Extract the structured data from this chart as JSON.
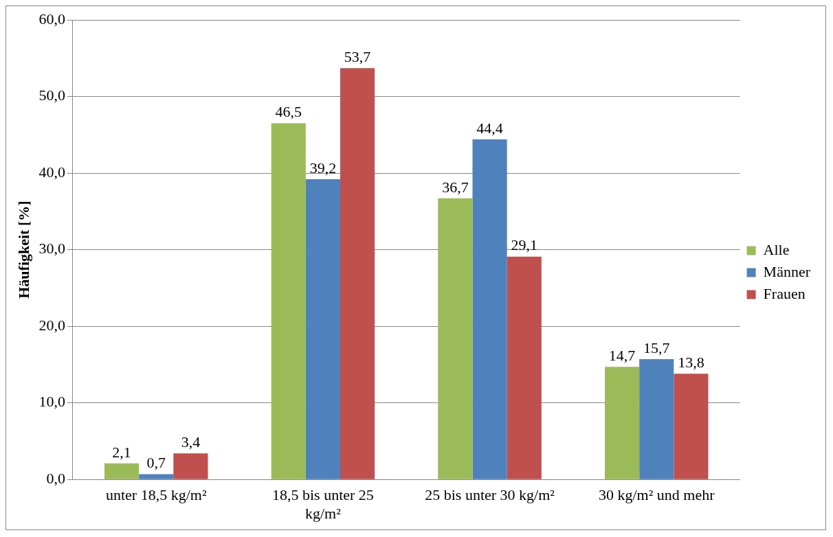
{
  "chart_data": {
    "type": "bar",
    "ylabel": "Häufigkeit [%]",
    "categories": [
      "unter 18,5 kg/m²",
      "18,5 bis unter 25 kg/m²",
      "25 bis unter 30 kg/m²",
      "30 kg/m² und mehr"
    ],
    "series": [
      {
        "name": "Alle",
        "color": "#9bbb59",
        "values": [
          2.1,
          46.5,
          36.7,
          14.7
        ],
        "value_labels": [
          "2,1",
          "46,5",
          "36,7",
          "14,7"
        ]
      },
      {
        "name": "Männer",
        "color": "#4f81bd",
        "values": [
          0.7,
          39.2,
          44.4,
          15.7
        ],
        "value_labels": [
          "0,7",
          "39,2",
          "44,4",
          "15,7"
        ]
      },
      {
        "name": "Frauen",
        "color": "#c0504d",
        "values": [
          3.4,
          53.7,
          29.1,
          13.8
        ],
        "value_labels": [
          "3,4",
          "53,7",
          "29,1",
          "13,8"
        ]
      }
    ],
    "ylim": [
      0,
      60
    ],
    "yticks": [
      {
        "value": 0,
        "label": "0,0"
      },
      {
        "value": 10,
        "label": "10,0"
      },
      {
        "value": 20,
        "label": "20,0"
      },
      {
        "value": 30,
        "label": "30,0"
      },
      {
        "value": 40,
        "label": "40,0"
      },
      {
        "value": 50,
        "label": "50,0"
      },
      {
        "value": 60,
        "label": "60,0"
      }
    ],
    "grid": "y",
    "legend": "right"
  }
}
